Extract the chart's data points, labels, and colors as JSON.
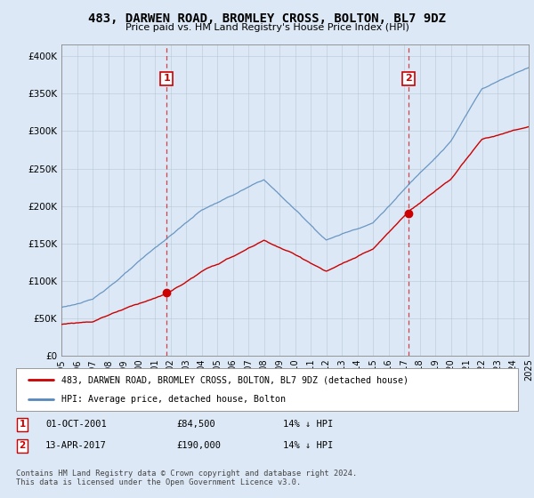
{
  "title": "483, DARWEN ROAD, BROMLEY CROSS, BOLTON, BL7 9DZ",
  "subtitle": "Price paid vs. HM Land Registry's House Price Index (HPI)",
  "yticks": [
    0,
    50000,
    100000,
    150000,
    200000,
    250000,
    300000,
    350000,
    400000
  ],
  "ytick_labels": [
    "£0",
    "£50K",
    "£100K",
    "£150K",
    "£200K",
    "£250K",
    "£300K",
    "£350K",
    "£400K"
  ],
  "xmin_year": 1995,
  "xmax_year": 2025,
  "xticks": [
    1995,
    1996,
    1997,
    1998,
    1999,
    2000,
    2001,
    2002,
    2003,
    2004,
    2005,
    2006,
    2007,
    2008,
    2009,
    2010,
    2011,
    2012,
    2013,
    2014,
    2015,
    2016,
    2017,
    2018,
    2019,
    2020,
    2021,
    2022,
    2023,
    2024,
    2025
  ],
  "sale1_x": 2001.75,
  "sale1_y": 84500,
  "sale1_label": "1",
  "sale2_x": 2017.28,
  "sale2_y": 190000,
  "sale2_label": "2",
  "red_line_color": "#cc0000",
  "blue_line_color": "#5588bb",
  "vline_color": "#cc0000",
  "legend_label1": "483, DARWEN ROAD, BROMLEY CROSS, BOLTON, BL7 9DZ (detached house)",
  "legend_label2": "HPI: Average price, detached house, Bolton",
  "table_row1": [
    "1",
    "01-OCT-2001",
    "£84,500",
    "14% ↓ HPI"
  ],
  "table_row2": [
    "2",
    "13-APR-2017",
    "£190,000",
    "14% ↓ HPI"
  ],
  "footnote": "Contains HM Land Registry data © Crown copyright and database right 2024.\nThis data is licensed under the Open Government Licence v3.0.",
  "bg_color": "#dce8f5",
  "plot_bg_color": "#dce8f5",
  "outer_bg": "#dce8f5"
}
